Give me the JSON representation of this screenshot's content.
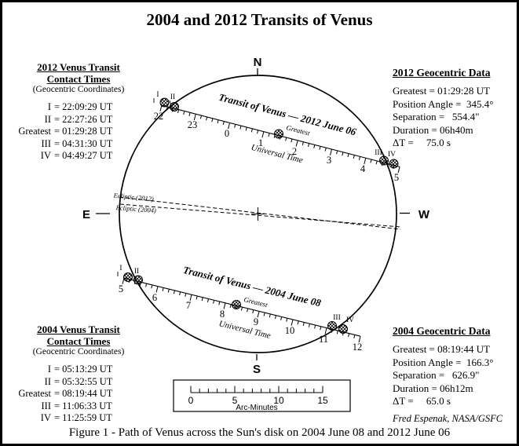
{
  "title": "2004 and 2012 Transits of Venus",
  "caption": "Figure 1 - Path of Venus across the Sun's disk on 2004 June 08 and 2012 June 06",
  "credit": "Fred Espenak, NASA/GSFC",
  "compass": {
    "n": "N",
    "e": "E",
    "s": "S",
    "w": "W"
  },
  "contact_times_2012": {
    "heading1": "2012 Venus Transit",
    "heading2": "Contact Times",
    "subheading": "(Geocentric Coordinates)",
    "rows": [
      {
        "label": "I",
        "value": "= 22:09:29 UT"
      },
      {
        "label": "II",
        "value": "= 22:27:26 UT"
      },
      {
        "label": "Greatest",
        "value": "= 01:29:28 UT"
      },
      {
        "label": "III",
        "value": "= 04:31:30 UT"
      },
      {
        "label": "IV",
        "value": "= 04:49:27 UT"
      }
    ]
  },
  "contact_times_2004": {
    "heading1": "2004 Venus Transit",
    "heading2": "Contact Times",
    "subheading": "(Geocentric Coordinates)",
    "rows": [
      {
        "label": "I",
        "value": "= 05:13:29 UT"
      },
      {
        "label": "II",
        "value": "= 05:32:55 UT"
      },
      {
        "label": "Greatest",
        "value": "= 08:19:44 UT"
      },
      {
        "label": "III",
        "value": "= 11:06:33 UT"
      },
      {
        "label": "IV",
        "value": "= 11:25:59 UT"
      }
    ]
  },
  "geocentric_2012": {
    "heading": "2012 Geocentric Data",
    "lines": [
      "Greatest = 01:29:28 UT",
      "Position Angle =  345.4°",
      "Separation =   554.4\"",
      "Duration = 06h40m",
      "ΔT =     75.0 s"
    ]
  },
  "geocentric_2004": {
    "heading": "2004 Geocentric Data",
    "lines": [
      "Greatest = 08:19:44 UT",
      "Position Angle =  166.3°",
      "Separation =   626.9\"",
      "Duration = 06h12m",
      "ΔT =     65.0 s"
    ]
  },
  "path_2012": {
    "label": "Transit of Venus — 2012 June 06",
    "axis_label": "Universal Time",
    "greatest_label": "Greatest",
    "hour_ticks": [
      "22",
      "23",
      "0",
      "1",
      "2",
      "3",
      "4",
      "5"
    ],
    "contact_labels": [
      "I",
      "II",
      "III",
      "IV"
    ]
  },
  "path_2004": {
    "label": "Transit of Venus — 2004 June 08",
    "axis_label": "Universal Time",
    "greatest_label": "Greatest",
    "hour_ticks": [
      "5",
      "6",
      "7",
      "8",
      "9",
      "10",
      "11",
      "12"
    ],
    "contact_labels": [
      "I",
      "II",
      "III",
      "IV"
    ]
  },
  "ecliptic": {
    "label_2012": "Ecliptic (2012)",
    "label_2004": "Ecliptic (2004)"
  },
  "scale_bar": {
    "tick_labels": [
      "0",
      "5",
      "10",
      "15"
    ],
    "unit_label": "Arc-Minutes"
  }
}
